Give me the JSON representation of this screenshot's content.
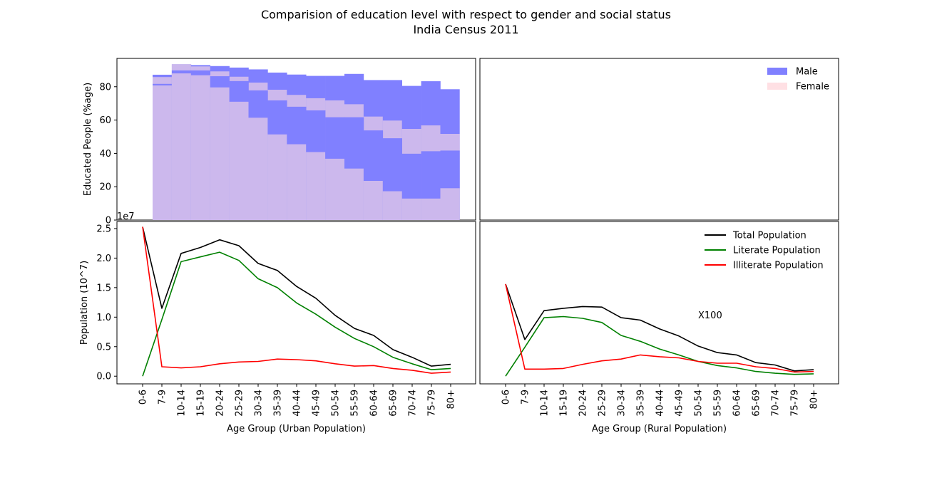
{
  "title": "Comparision of education level with respect to gender and social status",
  "subtitle": "India Census 2011",
  "chart_data": [
    {
      "type": "bar",
      "panel": "top-left",
      "ylabel": "Educated People (%age)",
      "ylim": [
        0,
        97
      ],
      "yticks": [
        0,
        20,
        40,
        60,
        80
      ],
      "categories": [
        "7-9",
        "10-14",
        "15-19",
        "20-24",
        "25-29",
        "30-34",
        "35-39",
        "40-44",
        "45-49",
        "50-54",
        "55-59",
        "60-64",
        "65-69",
        "70-74",
        "75-79",
        "80+"
      ],
      "series": [
        {
          "name": "Male",
          "color": "#8080ff",
          "values": [
            87.2,
            93.5,
            93.0,
            92.4,
            91.5,
            90.4,
            88.5,
            87.3,
            86.5,
            86.5,
            87.7,
            84.0,
            84.0,
            80.5,
            83.3,
            78.5
          ]
        },
        {
          "name": "Female",
          "color": "#ffdde1",
          "values": [
            85.8,
            93.5,
            92.2,
            89.2,
            86.0,
            82.5,
            78.2,
            75.1,
            73.1,
            71.8,
            69.5,
            62.1,
            59.7,
            54.7,
            56.8,
            51.7
          ]
        }
      ]
    },
    {
      "type": "bar",
      "panel": "top-right",
      "ylim": [
        0,
        97
      ],
      "legend": {
        "placement": "top-right",
        "items": [
          "Male",
          "Female"
        ]
      },
      "categories": [
        "7-9",
        "10-14",
        "15-19",
        "20-24",
        "25-29",
        "30-34",
        "35-39",
        "40-44",
        "45-49",
        "50-54",
        "55-59",
        "60-64",
        "65-69",
        "70-74",
        "75-79",
        "80+"
      ],
      "series": [
        {
          "name": "Male",
          "color": "#8080ff",
          "values": [
            81.7,
            89.8,
            89.8,
            86.3,
            83.4,
            77.8,
            71.8,
            68.0,
            65.8,
            61.7,
            61.7,
            53.8,
            49.1,
            39.8,
            41.3,
            41.7
          ]
        },
        {
          "name": "Female",
          "color": "#ffdde1",
          "values": [
            80.8,
            88.0,
            86.9,
            79.6,
            71.0,
            61.4,
            51.4,
            45.5,
            40.8,
            36.8,
            30.9,
            23.5,
            17.3,
            12.9,
            12.9,
            19.1
          ]
        }
      ]
    },
    {
      "type": "line",
      "panel": "bottom-left",
      "xlabel": "Age Group (Urban Population)",
      "ylabel": "Population (10^7)",
      "offset_text": "1e7",
      "ylim": [
        -0.13,
        2.62
      ],
      "yticks": [
        0.0,
        0.5,
        1.0,
        1.5,
        2.0,
        2.5
      ],
      "categories": [
        "0-6",
        "7-9",
        "10-14",
        "15-19",
        "20-24",
        "25-29",
        "30-34",
        "35-39",
        "40-44",
        "45-49",
        "50-54",
        "55-59",
        "60-64",
        "65-69",
        "70-74",
        "75-79",
        "80+"
      ],
      "series": [
        {
          "name": "Total Population",
          "color": "#000000",
          "values": [
            2.53,
            1.15,
            2.08,
            2.18,
            2.31,
            2.21,
            1.91,
            1.79,
            1.52,
            1.32,
            1.03,
            0.81,
            0.69,
            0.45,
            0.32,
            0.17,
            0.2
          ]
        },
        {
          "name": "Literate Population",
          "color": "#008000",
          "values": [
            0.0,
            0.96,
            1.94,
            2.02,
            2.1,
            1.96,
            1.65,
            1.5,
            1.24,
            1.05,
            0.83,
            0.64,
            0.5,
            0.32,
            0.21,
            0.11,
            0.13
          ]
        },
        {
          "name": "Illiterate Population",
          "color": "#ff0000",
          "values": [
            2.53,
            0.16,
            0.14,
            0.16,
            0.21,
            0.24,
            0.25,
            0.29,
            0.28,
            0.26,
            0.21,
            0.17,
            0.18,
            0.13,
            0.1,
            0.05,
            0.07
          ]
        }
      ]
    },
    {
      "type": "line",
      "panel": "bottom-right",
      "xlabel": "Age Group (Rural Population)",
      "annotation": "X100",
      "ylim": [
        -0.13,
        2.62
      ],
      "legend": {
        "placement": "top-right",
        "items": [
          "Total Population",
          "Literate Population",
          "Illiterate Population"
        ]
      },
      "categories": [
        "0-6",
        "7-9",
        "10-14",
        "15-19",
        "20-24",
        "25-29",
        "30-34",
        "35-39",
        "40-44",
        "45-49",
        "50-54",
        "55-59",
        "60-64",
        "65-69",
        "70-74",
        "75-79",
        "80+"
      ],
      "series": [
        {
          "name": "Total Population",
          "color": "#000000",
          "values": [
            1.56,
            0.62,
            1.11,
            1.15,
            1.18,
            1.17,
            0.99,
            0.95,
            0.8,
            0.68,
            0.51,
            0.4,
            0.36,
            0.23,
            0.19,
            0.09,
            0.11
          ]
        },
        {
          "name": "Literate Population",
          "color": "#008000",
          "values": [
            0.0,
            0.49,
            0.99,
            1.01,
            0.98,
            0.91,
            0.69,
            0.59,
            0.46,
            0.36,
            0.25,
            0.18,
            0.14,
            0.08,
            0.05,
            0.03,
            0.04
          ]
        },
        {
          "name": "Illiterate Population",
          "color": "#ff0000",
          "values": [
            1.56,
            0.12,
            0.12,
            0.13,
            0.2,
            0.26,
            0.29,
            0.36,
            0.33,
            0.31,
            0.25,
            0.22,
            0.22,
            0.16,
            0.13,
            0.07,
            0.08
          ]
        }
      ]
    }
  ]
}
